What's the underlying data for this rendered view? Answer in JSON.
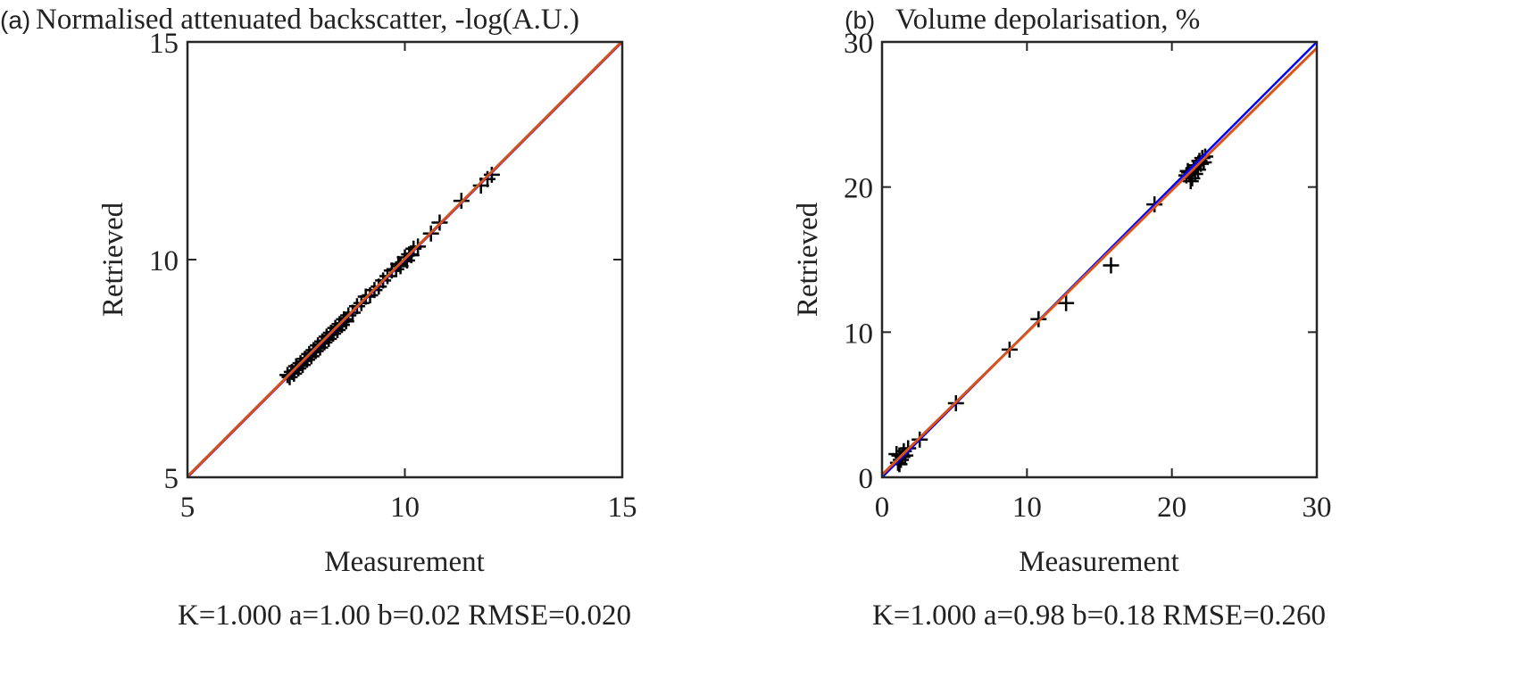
{
  "chart_data": [
    {
      "type": "scatter",
      "panel_label": "(a)",
      "title": "Normalised attenuated backscatter, -log(A.U.)",
      "xlabel": "Measurement",
      "ylabel": "Retrieved",
      "xlim": [
        5,
        15
      ],
      "ylim": [
        5,
        15
      ],
      "xticks": [
        "5",
        "10",
        "15"
      ],
      "yticks": [
        "5",
        "10",
        "15"
      ],
      "stats": "K=1.000 a=1.00 b=0.02 RMSE=0.020",
      "fit": {
        "a": 1.0,
        "b": 0.02
      },
      "colors": {
        "identity": "#0000ff",
        "fit": "#d95319",
        "marker": "#000000"
      },
      "points": [
        [
          7.3,
          7.35
        ],
        [
          7.35,
          7.3
        ],
        [
          7.4,
          7.42
        ],
        [
          7.45,
          7.38
        ],
        [
          7.5,
          7.55
        ],
        [
          7.55,
          7.5
        ],
        [
          7.6,
          7.62
        ],
        [
          7.65,
          7.58
        ],
        [
          7.7,
          7.72
        ],
        [
          7.75,
          7.7
        ],
        [
          7.8,
          7.83
        ],
        [
          7.85,
          7.78
        ],
        [
          7.9,
          7.92
        ],
        [
          7.95,
          7.9
        ],
        [
          8.0,
          8.03
        ],
        [
          8.05,
          7.98
        ],
        [
          8.1,
          8.12
        ],
        [
          8.15,
          8.1
        ],
        [
          8.2,
          8.23
        ],
        [
          8.25,
          8.18
        ],
        [
          8.3,
          8.32
        ],
        [
          8.35,
          8.3
        ],
        [
          8.4,
          8.43
        ],
        [
          8.45,
          8.38
        ],
        [
          8.5,
          8.52
        ],
        [
          8.55,
          8.5
        ],
        [
          8.6,
          8.63
        ],
        [
          8.65,
          8.58
        ],
        [
          8.7,
          8.72
        ],
        [
          8.8,
          8.78
        ],
        [
          8.9,
          8.93
        ],
        [
          9.0,
          9.0
        ],
        [
          9.1,
          9.15
        ],
        [
          9.2,
          9.18
        ],
        [
          9.3,
          9.3
        ],
        [
          9.4,
          9.38
        ],
        [
          9.5,
          9.52
        ],
        [
          9.6,
          9.62
        ],
        [
          9.7,
          9.75
        ],
        [
          9.8,
          9.78
        ],
        [
          9.85,
          9.9
        ],
        [
          9.9,
          9.85
        ],
        [
          10.0,
          10.05
        ],
        [
          10.05,
          9.98
        ],
        [
          10.1,
          10.12
        ],
        [
          10.15,
          10.1
        ],
        [
          10.2,
          10.25
        ],
        [
          10.3,
          10.3
        ],
        [
          10.6,
          10.6
        ],
        [
          10.8,
          10.85
        ],
        [
          11.3,
          11.35
        ],
        [
          11.75,
          11.7
        ],
        [
          11.9,
          11.85
        ],
        [
          12.0,
          11.95
        ]
      ]
    },
    {
      "type": "scatter",
      "panel_label": "(b)",
      "title": "Volume depolarisation, %",
      "xlabel": "Measurement",
      "ylabel": "Retrieved",
      "xlim": [
        0,
        30
      ],
      "ylim": [
        0,
        30
      ],
      "xticks": [
        "0",
        "10",
        "20",
        "30"
      ],
      "yticks": [
        "0",
        "10",
        "20",
        "30"
      ],
      "stats": "K=1.000 a=0.98 b=0.18 RMSE=0.260",
      "fit": {
        "a": 0.98,
        "b": 0.18
      },
      "colors": {
        "identity": "#0000ff",
        "fit": "#d95319",
        "marker": "#000000"
      },
      "points": [
        [
          1.0,
          1.6
        ],
        [
          1.2,
          1.5
        ],
        [
          1.3,
          1.2
        ],
        [
          1.1,
          1.0
        ],
        [
          1.4,
          1.4
        ],
        [
          1.5,
          1.8
        ],
        [
          1.2,
          0.9
        ],
        [
          1.6,
          1.5
        ],
        [
          1.8,
          2.0
        ],
        [
          2.6,
          2.6
        ],
        [
          5.1,
          5.1
        ],
        [
          8.8,
          8.8
        ],
        [
          10.8,
          10.9
        ],
        [
          12.7,
          12.0
        ],
        [
          15.8,
          14.6
        ],
        [
          18.8,
          18.8
        ],
        [
          21.0,
          20.8
        ],
        [
          21.2,
          21.0
        ],
        [
          21.4,
          20.6
        ],
        [
          21.5,
          21.3
        ],
        [
          21.7,
          21.5
        ],
        [
          21.9,
          21.8
        ],
        [
          22.1,
          22.0
        ],
        [
          22.2,
          21.7
        ],
        [
          21.3,
          20.4
        ],
        [
          21.8,
          21.2
        ],
        [
          22.0,
          21.6
        ],
        [
          21.1,
          21.1
        ],
        [
          22.3,
          22.1
        ],
        [
          21.6,
          20.9
        ]
      ]
    }
  ]
}
